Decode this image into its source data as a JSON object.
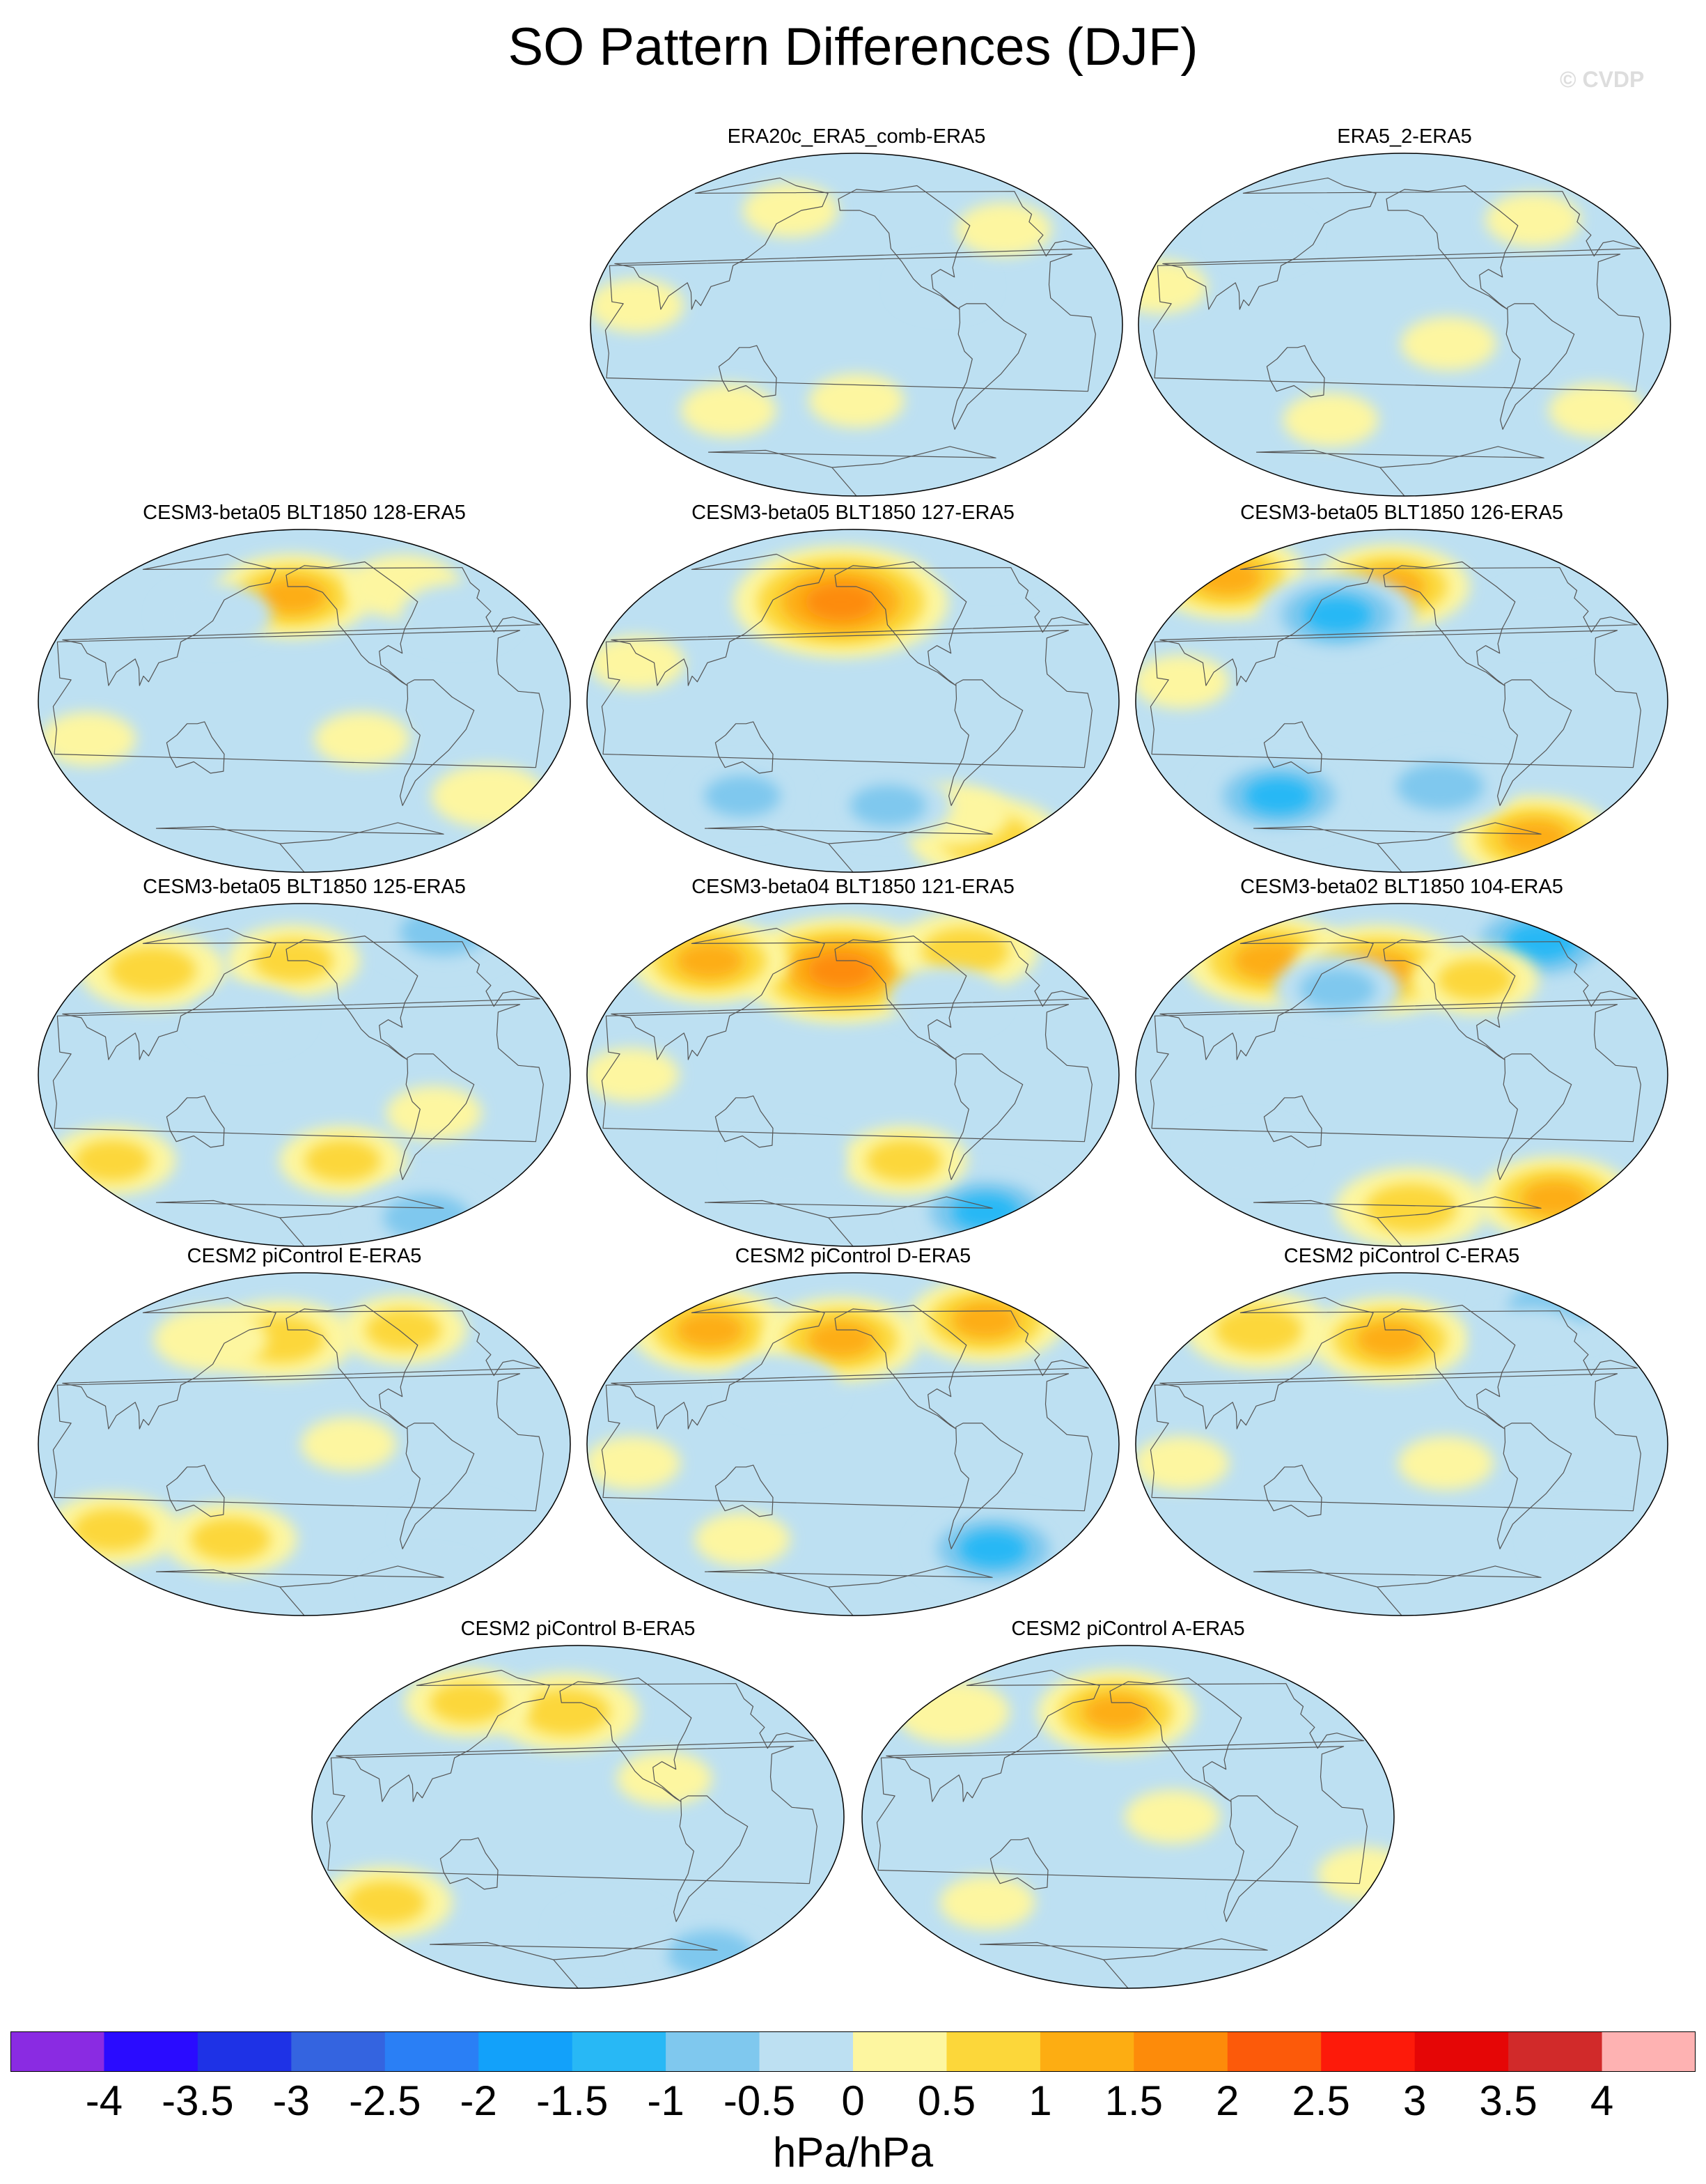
{
  "title": "SO Pattern Differences (DJF)",
  "watermark": "© CVDP",
  "panels": [
    {
      "label": "ERA20c_ERA5_comb-ERA5",
      "anomalies": [
        {
          "lon": -150,
          "lat": -40,
          "level": 0.3
        },
        {
          "lon": 60,
          "lat": 10,
          "level": 0.3
        },
        {
          "lon": 150,
          "lat": 60,
          "level": 0.3
        },
        {
          "lon": -30,
          "lat": 50,
          "level": 0.3
        },
        {
          "lon": 110,
          "lat": -45,
          "level": 0.3
        },
        {
          "lon": -90,
          "lat": 20,
          "level": -0.3
        }
      ]
    },
    {
      "label": "ERA5_2-ERA5",
      "anomalies": [
        {
          "lon": 40,
          "lat": 20,
          "level": 0.3
        },
        {
          "lon": -120,
          "lat": -10,
          "level": 0.3
        },
        {
          "lon": 0,
          "lat": -45,
          "level": 0.3
        },
        {
          "lon": 150,
          "lat": -50,
          "level": 0.3
        },
        {
          "lon": -40,
          "lat": 55,
          "level": 0.3
        },
        {
          "lon": 100,
          "lat": 45,
          "level": -0.3
        }
      ]
    },
    {
      "label": "CESM3-beta05 BLT1850 128-ERA5",
      "anomalies": [
        {
          "lon": -160,
          "lat": 55,
          "level": 1.3
        },
        {
          "lon": -60,
          "lat": 60,
          "level": 0.6
        },
        {
          "lon": 60,
          "lat": -20,
          "level": 0.3
        },
        {
          "lon": -110,
          "lat": -20,
          "level": 0.3
        },
        {
          "lon": 140,
          "lat": 45,
          "level": -0.6
        },
        {
          "lon": -30,
          "lat": 45,
          "level": -0.6
        },
        {
          "lon": 0,
          "lat": -50,
          "level": 0.6
        }
      ]
    },
    {
      "label": "CESM3-beta05 BLT1850 127-ERA5",
      "anomalies": [
        {
          "lon": -160,
          "lat": 52,
          "level": 2.2
        },
        {
          "lon": 0,
          "lat": -72,
          "level": 1.2
        },
        {
          "lon": -60,
          "lat": -60,
          "level": 0.6
        },
        {
          "lon": 120,
          "lat": -50,
          "level": -0.8
        },
        {
          "lon": -120,
          "lat": -55,
          "level": -0.8
        },
        {
          "lon": 20,
          "lat": 75,
          "level": -0.6
        },
        {
          "lon": 60,
          "lat": 20,
          "level": 0.3
        }
      ]
    },
    {
      "label": "CESM3-beta05 BLT1850 126-ERA5",
      "anomalies": [
        {
          "lon": -160,
          "lat": 60,
          "level": 1.3
        },
        {
          "lon": 40,
          "lat": 65,
          "level": 1.3
        },
        {
          "lon": 160,
          "lat": 45,
          "level": -1.3
        },
        {
          "lon": 0,
          "lat": -72,
          "level": 1.3
        },
        {
          "lon": 110,
          "lat": -50,
          "level": -1.3
        },
        {
          "lon": -120,
          "lat": -45,
          "level": -1.1
        },
        {
          "lon": -40,
          "lat": 45,
          "level": -0.6
        },
        {
          "lon": 60,
          "lat": 10,
          "level": 0.3
        }
      ]
    },
    {
      "label": "CESM3-beta05 BLT1850 125-ERA5",
      "anomalies": [
        {
          "lon": 80,
          "lat": 55,
          "level": 1.1
        },
        {
          "lon": -160,
          "lat": 60,
          "level": 0.9
        },
        {
          "lon": 20,
          "lat": 75,
          "level": -1.1
        },
        {
          "lon": 170,
          "lat": 30,
          "level": -0.6
        },
        {
          "lon": 60,
          "lat": -45,
          "level": 0.8
        },
        {
          "lon": -120,
          "lat": -45,
          "level": 0.8
        },
        {
          "lon": 0,
          "lat": -75,
          "level": -1.1
        },
        {
          "lon": -60,
          "lat": -20,
          "level": 0.3
        }
      ]
    },
    {
      "label": "CESM3-beta04 BLT1850 121-ERA5",
      "anomalies": [
        {
          "lon": -160,
          "lat": 55,
          "level": 2.0
        },
        {
          "lon": 80,
          "lat": 60,
          "level": 1.3
        },
        {
          "lon": -40,
          "lat": 65,
          "level": 1.1
        },
        {
          "lon": 0,
          "lat": -72,
          "level": -1.3
        },
        {
          "lon": -110,
          "lat": -45,
          "level": 0.8
        },
        {
          "lon": 160,
          "lat": -45,
          "level": -0.6
        },
        {
          "lon": -80,
          "lat": 40,
          "level": -0.6
        },
        {
          "lon": 60,
          "lat": 0,
          "level": 0.3
        }
      ]
    },
    {
      "label": "CESM3-beta02 BLT1850 104-ERA5",
      "anomalies": [
        {
          "lon": 90,
          "lat": 60,
          "level": 1.5
        },
        {
          "lon": -170,
          "lat": 55,
          "level": 1.5
        },
        {
          "lon": 0,
          "lat": 70,
          "level": -1.5
        },
        {
          "lon": -90,
          "lat": 50,
          "level": 0.8
        },
        {
          "lon": 160,
          "lat": 45,
          "level": -0.8
        },
        {
          "lon": 0,
          "lat": -65,
          "level": 1.3
        },
        {
          "lon": -140,
          "lat": -70,
          "level": 1.2
        },
        {
          "lon": 90,
          "lat": -40,
          "level": -0.6
        }
      ]
    },
    {
      "label": "CESM2 piControl E-ERA5",
      "anomalies": [
        {
          "lon": -170,
          "lat": 55,
          "level": 1.1
        },
        {
          "lon": -60,
          "lat": 60,
          "level": 0.8
        },
        {
          "lon": 130,
          "lat": 55,
          "level": 0.6
        },
        {
          "lon": 60,
          "lat": -45,
          "level": 0.9
        },
        {
          "lon": 150,
          "lat": -50,
          "level": 0.9
        },
        {
          "lon": -30,
          "lat": -45,
          "level": -0.6
        },
        {
          "lon": 0,
          "lat": -75,
          "level": -0.6
        },
        {
          "lon": -120,
          "lat": 0,
          "level": 0.3
        }
      ]
    },
    {
      "label": "CESM2 piControl D-ERA5",
      "anomalies": [
        {
          "lon": 80,
          "lat": 60,
          "level": 1.3
        },
        {
          "lon": -160,
          "lat": 55,
          "level": 1.3
        },
        {
          "lon": -20,
          "lat": 65,
          "level": 1.3
        },
        {
          "lon": 160,
          "lat": 30,
          "level": -0.6
        },
        {
          "lon": -30,
          "lat": -55,
          "level": -1.3
        },
        {
          "lon": 120,
          "lat": -50,
          "level": 0.3
        },
        {
          "lon": 60,
          "lat": -10,
          "level": 0.3
        }
      ]
    },
    {
      "label": "CESM2 piControl C-ERA5",
      "anomalies": [
        {
          "lon": 80,
          "lat": 60,
          "level": 1.1
        },
        {
          "lon": -160,
          "lat": 55,
          "level": 1.3
        },
        {
          "lon": 20,
          "lat": 72,
          "level": -1.1
        },
        {
          "lon": -40,
          "lat": 55,
          "level": -0.6
        },
        {
          "lon": -120,
          "lat": -10,
          "level": 0.3
        },
        {
          "lon": 60,
          "lat": -10,
          "level": 0.3
        },
        {
          "lon": 0,
          "lat": -50,
          "level": -0.6
        }
      ]
    },
    {
      "label": "CESM2 piControl B-ERA5",
      "anomalies": [
        {
          "lon": -160,
          "lat": 55,
          "level": 1.1
        },
        {
          "lon": 110,
          "lat": 60,
          "level": 0.8
        },
        {
          "lon": -90,
          "lat": 20,
          "level": 0.3
        },
        {
          "lon": 60,
          "lat": -45,
          "level": 0.9
        },
        {
          "lon": 0,
          "lat": -72,
          "level": -1.1
        },
        {
          "lon": -120,
          "lat": -60,
          "level": -0.6
        }
      ]
    },
    {
      "label": "CESM2 piControl A-ERA5",
      "anomalies": [
        {
          "lon": -160,
          "lat": 55,
          "level": 1.3
        },
        {
          "lon": 60,
          "lat": 55,
          "level": 0.6
        },
        {
          "lon": -120,
          "lat": 0,
          "level": 0.3
        },
        {
          "lon": 20,
          "lat": -30,
          "level": 0.3
        },
        {
          "lon": 100,
          "lat": -45,
          "level": 0.3
        },
        {
          "lon": -40,
          "lat": -45,
          "level": -0.3
        }
      ]
    }
  ],
  "colorbar": {
    "colors": [
      "#8a2be2",
      "#2a0bff",
      "#1e32e6",
      "#3464e0",
      "#2a7ff5",
      "#12a1fa",
      "#28b8f5",
      "#7fc8ee",
      "#bde0f2",
      "#fdf6a0",
      "#fcd73a",
      "#fdad12",
      "#fd8b0a",
      "#fc5a0a",
      "#fd1a0a",
      "#e50606",
      "#d12a2a",
      "#feb2b2"
    ],
    "tick_labels": [
      "-4",
      "-3.5",
      "-3",
      "-2.5",
      "-2",
      "-1.5",
      "-1",
      "-0.5",
      "0",
      "0.5",
      "1",
      "1.5",
      "2",
      "2.5",
      "3",
      "3.5",
      "4"
    ],
    "levels": [
      -4,
      -3.5,
      -3,
      -2.5,
      -2,
      -1.5,
      -1,
      -0.5,
      0,
      0.5,
      1,
      1.5,
      2,
      2.5,
      3,
      3.5,
      4
    ],
    "units": "hPa/hPa"
  }
}
